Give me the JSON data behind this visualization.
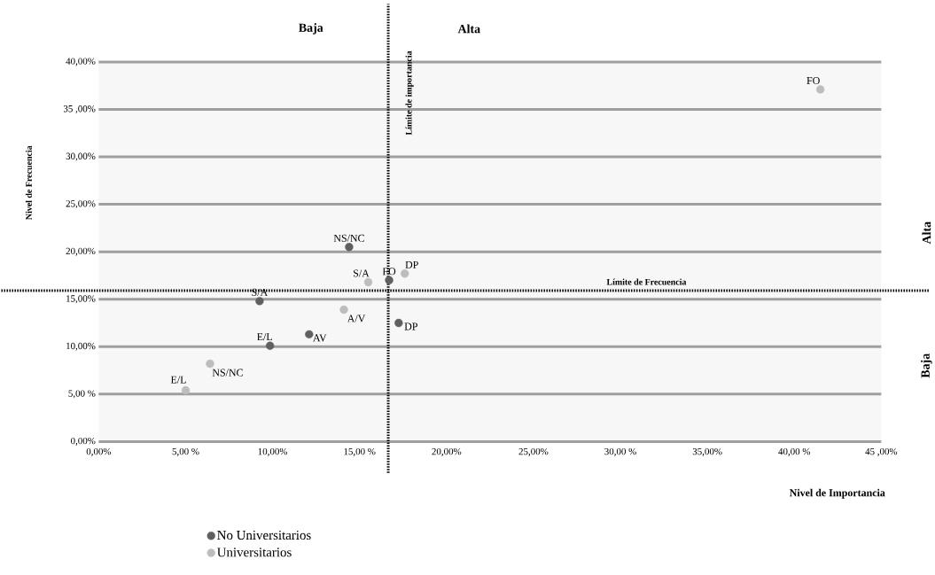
{
  "chart_data": {
    "type": "scatter",
    "xlabel": "Nivel de Importancia",
    "ylabel": "Nivel de Frecuencia",
    "xlim": [
      0,
      45
    ],
    "ylim": [
      0,
      40
    ],
    "xticks": [
      {
        "value": 0,
        "label": "0,00%"
      },
      {
        "value": 5,
        "label": "5,00 %"
      },
      {
        "value": 10,
        "label": "10,00%"
      },
      {
        "value": 15,
        "label": "15,00 %"
      },
      {
        "value": 20,
        "label": "20,00%"
      },
      {
        "value": 25,
        "label": "25,00%"
      },
      {
        "value": 30,
        "label": "30,00 %"
      },
      {
        "value": 35,
        "label": "35,00%"
      },
      {
        "value": 40,
        "label": "40,00 %"
      },
      {
        "value": 45,
        "label": "45 ,00%"
      }
    ],
    "yticks": [
      {
        "value": 0,
        "label": "0,00%"
      },
      {
        "value": 5,
        "label": "5,00 %"
      },
      {
        "value": 10,
        "label": "10,00%"
      },
      {
        "value": 15,
        "label": "15,00%"
      },
      {
        "value": 20,
        "label": "20,00%"
      },
      {
        "value": 25,
        "label": "25,00%"
      },
      {
        "value": 30,
        "label": "30,00%"
      },
      {
        "value": 35,
        "label": "35 ,00%"
      },
      {
        "value": 40,
        "label": "40,00%"
      }
    ],
    "grid": "y",
    "legend": "bottom",
    "marker": "circle",
    "series": [
      {
        "name": "No Universitarios",
        "color": "#606060",
        "x": [
          14.4,
          16.7,
          9.25,
          9.85,
          12.1,
          17.25
        ],
        "values": [
          20.5,
          17.0,
          14.8,
          10.1,
          11.3,
          12.5
        ]
      },
      {
        "name": "Universitarios",
        "color": "#bdbdbd",
        "x": [
          41.5,
          15.5,
          17.6,
          14.1,
          6.4,
          5.0
        ],
        "values": [
          37.1,
          16.8,
          17.7,
          13.9,
          8.2,
          5.4
        ]
      }
    ],
    "ref_lines": [
      {
        "axis": "x",
        "value": 16.65,
        "label": "Límite de importancia",
        "color": "#000000",
        "line_style": "dashed"
      },
      {
        "axis": "y",
        "value": 15.9,
        "label": "Límite de Frecuencia",
        "color": "#000000",
        "line_style": "dashed"
      }
    ],
    "annotations": [
      "Baja",
      "Alta",
      "Alta",
      "Baja",
      {
        "text": "NS/NC",
        "x": 14.4,
        "y": 20.5
      },
      {
        "text": "FO",
        "x": 16.7,
        "y": 17.0
      },
      {
        "text": "S/A",
        "x": 9.25,
        "y": 14.8
      },
      {
        "text": "E/L",
        "x": 9.85,
        "y": 10.1
      },
      {
        "text": "AV",
        "x": 12.1,
        "y": 11.3
      },
      {
        "text": "DP",
        "x": 17.25,
        "y": 12.5
      },
      {
        "text": "FO",
        "x": 41.5,
        "y": 37.1
      },
      {
        "text": "S/A",
        "x": 15.5,
        "y": 16.8
      },
      {
        "text": "DP",
        "x": 17.6,
        "y": 17.7
      },
      {
        "text": "A/V",
        "x": 14.1,
        "y": 13.9
      },
      {
        "text": "NS/NC",
        "x": 6.4,
        "y": 8.2
      },
      {
        "text": "E/L",
        "x": 5.0,
        "y": 5.4
      }
    ]
  }
}
